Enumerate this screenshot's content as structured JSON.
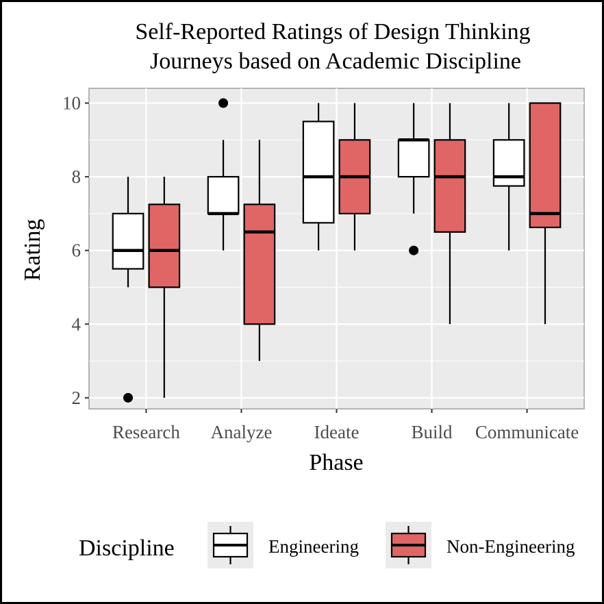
{
  "chart_data": {
    "type": "boxplot",
    "title_lines": [
      "Self-Reported Ratings of Design Thinking",
      "Journeys based on Academic Discipline"
    ],
    "xlabel": "Phase",
    "ylabel": "Rating",
    "ylim": [
      1.7,
      10.4
    ],
    "y_ticks": [
      "2",
      "4",
      "6",
      "8",
      "10"
    ],
    "y_tick_values": [
      2,
      4,
      6,
      8,
      10
    ],
    "categories": [
      "Research",
      "Analyze",
      "Ideate",
      "Build",
      "Communicate"
    ],
    "grid": true,
    "legend": {
      "title": "Discipline",
      "position": "bottom",
      "entries": [
        "Engineering",
        "Non-Engineering"
      ]
    },
    "series": [
      {
        "name": "Engineering",
        "color": "#ffffff",
        "boxes": [
          {
            "category": "Research",
            "min": 5,
            "q1": 5.5,
            "median": 6,
            "q3": 7,
            "max": 8,
            "outliers": [
              2
            ]
          },
          {
            "category": "Analyze",
            "min": 6,
            "q1": 7,
            "median": 7,
            "q3": 8,
            "max": 9,
            "outliers": [
              10
            ]
          },
          {
            "category": "Ideate",
            "min": 6,
            "q1": 6.75,
            "median": 8,
            "q3": 9.5,
            "max": 10,
            "outliers": []
          },
          {
            "category": "Build",
            "min": 7,
            "q1": 8,
            "median": 9,
            "q3": 9,
            "max": 10,
            "outliers": [
              6
            ]
          },
          {
            "category": "Communicate",
            "min": 6,
            "q1": 7.75,
            "median": 8,
            "q3": 9,
            "max": 10,
            "outliers": []
          }
        ]
      },
      {
        "name": "Non-Engineering",
        "color": "#e06666",
        "boxes": [
          {
            "category": "Research",
            "min": 2,
            "q1": 5,
            "median": 6,
            "q3": 7.25,
            "max": 8,
            "outliers": []
          },
          {
            "category": "Analyze",
            "min": 3,
            "q1": 4,
            "median": 6.5,
            "q3": 7.25,
            "max": 9,
            "outliers": []
          },
          {
            "category": "Ideate",
            "min": 6,
            "q1": 7,
            "median": 8,
            "q3": 9,
            "max": 10,
            "outliers": []
          },
          {
            "category": "Build",
            "min": 4,
            "q1": 6.5,
            "median": 8,
            "q3": 9,
            "max": 10,
            "outliers": []
          },
          {
            "category": "Communicate",
            "min": 4,
            "q1": 6.625,
            "median": 7,
            "q3": 10,
            "max": 10,
            "outliers": []
          }
        ]
      }
    ]
  }
}
